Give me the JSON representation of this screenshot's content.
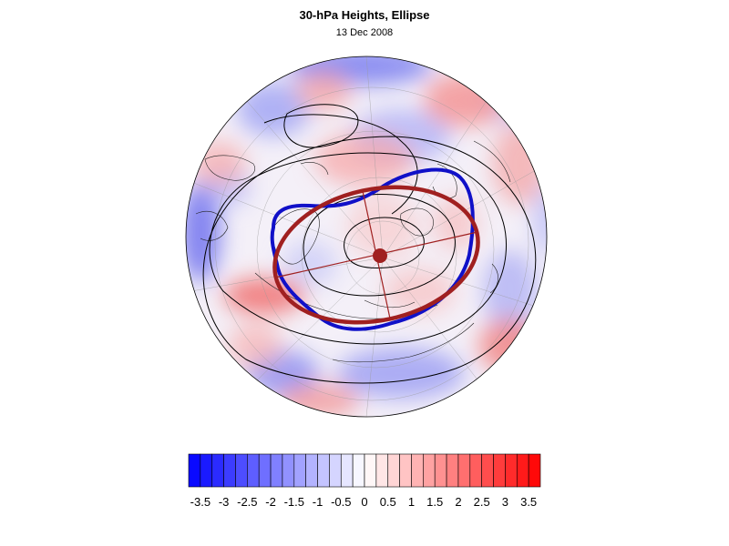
{
  "header": {
    "title": "30-hPa Heights, Ellipse",
    "date": "13 Dec 2008"
  },
  "map": {
    "projection": "polar-stereographic",
    "hemisphere": "northern",
    "field": "30-hPa height anomaly (shaded)",
    "contours": "30-hPa height (black lines)",
    "overlays": [
      {
        "name": "vortex-edge",
        "color": "#1010c8"
      },
      {
        "name": "fitted-ellipse",
        "color": "#a02020"
      }
    ],
    "center_marker_color": "#a02020"
  },
  "colorbar": {
    "min": -3.75,
    "max": 3.75,
    "step": 0.25,
    "tick_labels": [
      "-3.5",
      "-3",
      "-2.5",
      "-2",
      "-1.5",
      "-1",
      "-0.5",
      "0",
      "0.5",
      "1",
      "1.5",
      "2",
      "2.5",
      "3",
      "3.5"
    ],
    "tick_values": [
      -3.5,
      -3,
      -2.5,
      -2,
      -1.5,
      -1,
      -0.5,
      0,
      0.5,
      1,
      1.5,
      2,
      2.5,
      3,
      3.5
    ],
    "negative_color": "#0000ff",
    "positive_color": "#ff0000",
    "neutral_color": "#ffffff"
  }
}
